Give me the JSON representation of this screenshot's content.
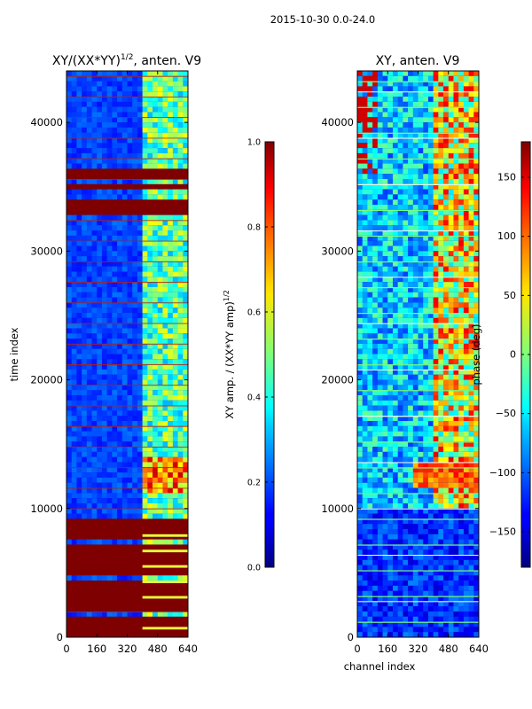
{
  "suptitle": "2015-10-30 0.0-24.0",
  "chart_data": [
    {
      "type": "heatmap",
      "title_main": "XY/(XX*YY)",
      "title_sup": "1/2",
      "title_tail": ", anten. V9",
      "xlabel": "",
      "ylabel": "time index",
      "xlim": [
        0,
        640
      ],
      "ylim": [
        0,
        44000
      ],
      "xticks": [
        0,
        160,
        320,
        480,
        640
      ],
      "yticks": [
        0,
        10000,
        20000,
        30000,
        40000
      ],
      "colormap": "jet",
      "colorbar": {
        "label_main": "XY amp. / (XX*YY amp)",
        "label_sup": "1/2",
        "range": [
          0.0,
          1.0
        ],
        "ticks": [
          0.0,
          0.2,
          0.4,
          0.6,
          0.8,
          1.0
        ],
        "ticklabels": [
          "0.0",
          "0.2",
          "0.4",
          "0.6",
          "0.8",
          "1.0"
        ]
      },
      "features": {
        "saturated_bands_time": [
          [
            32500,
            34000
          ],
          [
            35000,
            36200
          ],
          [
            0,
            9000
          ]
        ],
        "active_channel_range": [
          400,
          640
        ]
      }
    },
    {
      "type": "heatmap",
      "title_main": "XY, anten. V9",
      "xlabel": "channel index",
      "ylabel": "",
      "xlim": [
        0,
        640
      ],
      "ylim": [
        0,
        44000
      ],
      "xticks": [
        0,
        160,
        320,
        480,
        640
      ],
      "yticks": [
        0,
        10000,
        20000,
        30000,
        40000
      ],
      "colormap": "jet",
      "colorbar": {
        "label_main": "phase (deg)",
        "range": [
          -180,
          180
        ],
        "ticks": [
          -150,
          -100,
          -50,
          0,
          50,
          100,
          150
        ],
        "ticklabels": [
          "−150",
          "−100",
          "−50",
          "0",
          "50",
          "100",
          "150"
        ]
      },
      "features": {
        "high_phase_band_time": [
          11500,
          13500
        ],
        "active_channel_range": [
          400,
          640
        ]
      }
    }
  ]
}
